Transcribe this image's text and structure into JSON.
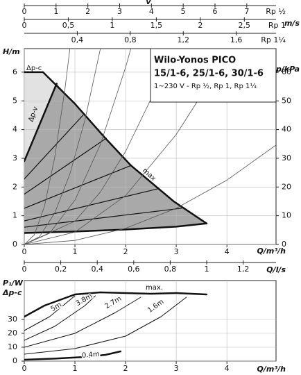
{
  "chart_data": [
    {
      "type": "line",
      "title": "Wilo-Yonos PICO",
      "subtitle": "15/1-6, 25/1-6, 30/1-6",
      "note": "1~230 V - Rp ½, Rp 1, Rp 1¼",
      "x_label": "Q/m³/h",
      "y_label": "H/m",
      "y2_label": "p/kPa",
      "xlim": [
        0,
        4.97
      ],
      "ylim": [
        0,
        6.82
      ],
      "y2lim": [
        0,
        68.2
      ],
      "xticks": [
        0,
        1,
        2,
        3,
        4
      ],
      "yticks": [
        0,
        1,
        2,
        3,
        4,
        5,
        6
      ],
      "y2ticks": [
        0,
        10,
        20,
        30,
        40,
        50,
        60
      ],
      "grid": true,
      "top_axes_title": "v",
      "top_axes_unit": "m/s",
      "top_axes": [
        {
          "label": "Rp ½",
          "lim": [
            0,
            7.92
          ],
          "ticks": [
            0,
            1,
            2,
            3,
            4,
            5,
            6,
            7
          ]
        },
        {
          "label": "Rp 1",
          "lim": [
            0,
            2.86
          ],
          "ticks": [
            0,
            {
              "value": 0.5,
              "label": "0,5"
            },
            1,
            {
              "value": 1.5,
              "label": "1,5"
            },
            2,
            {
              "value": 2.5,
              "label": "2,5"
            }
          ]
        },
        {
          "label": "Rp 1¼",
          "lim": [
            0,
            1.9
          ],
          "ticks": [
            {
              "value": 0.4,
              "label": "0,4"
            },
            {
              "value": 0.8,
              "label": "0,8"
            },
            {
              "value": 1.2,
              "label": "1,2"
            },
            {
              "value": 1.6,
              "label": "1,6"
            }
          ]
        }
      ],
      "bottom_axis": {
        "label": "Q/l/s",
        "lim": [
          0,
          1.38
        ],
        "ticks": [
          0,
          {
            "value": 0.2,
            "label": "0,2"
          },
          {
            "value": 0.4,
            "label": "0,4"
          },
          {
            "value": 0.6,
            "label": "0,6"
          },
          {
            "value": 0.8,
            "label": "0,8"
          },
          1,
          {
            "value": 1.2,
            "label": "1,2"
          }
        ]
      },
      "annotations": [
        "Δp-c",
        "Δp-v"
      ],
      "series": [
        {
          "name": "max",
          "color": "#111111",
          "width": 2.5,
          "x": [
            0,
            0.37,
            1,
            1.6,
            2.1,
            2.95,
            3.6
          ],
          "values": [
            6,
            6,
            4.9,
            3.7,
            2.76,
            1.5,
            0.73
          ]
        },
        {
          "color": "#111111",
          "width": 2.5,
          "x": [
            0,
            1,
            2,
            3,
            3.6
          ],
          "values": [
            0.4,
            0.45,
            0.52,
            0.62,
            0.73
          ]
        },
        {
          "color": "#111111",
          "width": 2.5,
          "x": [
            0,
            0.64
          ],
          "values": [
            2.9,
            5.6
          ]
        },
        {
          "color": "#111111",
          "width": 1.2,
          "x": [
            0,
            1.16
          ],
          "values": [
            2.28,
            4.5
          ]
        },
        {
          "color": "#111111",
          "width": 1.2,
          "x": [
            0,
            1.62
          ],
          "values": [
            1.75,
            3.7
          ]
        },
        {
          "color": "#111111",
          "width": 1.2,
          "x": [
            0,
            2.12
          ],
          "values": [
            1.26,
            2.76
          ]
        },
        {
          "color": "#111111",
          "width": 1.2,
          "x": [
            0,
            2.64
          ],
          "values": [
            0.82,
            1.94
          ]
        },
        {
          "color": "#111111",
          "width": 1.2,
          "x": [
            0,
            3.1
          ],
          "values": [
            0.6,
            1.26
          ]
        },
        {
          "color": "#555555",
          "width": 0.8,
          "x": [
            0,
            0.2,
            0.4,
            0.6,
            0.8,
            0.9
          ],
          "values": [
            0,
            0.34,
            1.34,
            3.02,
            5.37,
            6.8
          ]
        },
        {
          "color": "#555555",
          "width": 0.8,
          "x": [
            0,
            0.3,
            0.6,
            0.9,
            1.2,
            1.5
          ],
          "values": [
            0,
            0.27,
            1.09,
            2.45,
            4.35,
            6.8
          ]
        },
        {
          "color": "#555555",
          "width": 0.8,
          "x": [
            0,
            0.5,
            1,
            1.5,
            2,
            2.1
          ],
          "values": [
            0,
            0.39,
            1.54,
            3.47,
            6.17,
            6.8
          ]
        },
        {
          "color": "#555555",
          "width": 0.8,
          "x": [
            0,
            1,
            1.5,
            2,
            2.5,
            2.9
          ],
          "values": [
            0,
            0.81,
            1.82,
            3.24,
            5.06,
            6.8
          ]
        },
        {
          "color": "#555555",
          "width": 0.8,
          "x": [
            0,
            1,
            2,
            3,
            3.5,
            4
          ],
          "values": [
            0,
            0.43,
            1.7,
            3.83,
            5.21,
            6.8
          ]
        },
        {
          "color": "#555555",
          "width": 0.8,
          "x": [
            0,
            1,
            2,
            3,
            4,
            5
          ],
          "values": [
            0,
            0.14,
            0.56,
            1.26,
            2.24,
            3.5
          ]
        }
      ]
    },
    {
      "type": "line",
      "x_label": "Q/m³/h",
      "y_label": "P₁/W",
      "annotation": "Δp-c",
      "xlim": [
        0,
        4.97
      ],
      "ylim": [
        0,
        58
      ],
      "xticks": [
        0,
        1,
        2,
        3,
        4
      ],
      "yticks": [
        0,
        10,
        20,
        30
      ],
      "grid": true,
      "series": [
        {
          "name": "max.",
          "color": "#111111",
          "width": 2.5,
          "x": [
            0,
            0.4,
            1,
            1.5,
            2,
            2.5,
            3,
            3.6
          ],
          "values": [
            32,
            40,
            48,
            49.5,
            49,
            48.5,
            49,
            48
          ]
        },
        {
          "name": "5m",
          "color": "#111111",
          "width": 1,
          "x": [
            0,
            0.5,
            1
          ],
          "values": [
            22,
            32,
            47
          ]
        },
        {
          "name": "3.8m",
          "color": "#111111",
          "width": 1,
          "x": [
            0,
            0.6,
            1.2,
            1.4
          ],
          "values": [
            15,
            25,
            40,
            47
          ]
        },
        {
          "name": "2.7m",
          "color": "#111111",
          "width": 1,
          "x": [
            0,
            1,
            1.8,
            2.3
          ],
          "values": [
            10,
            20,
            35,
            46
          ]
        },
        {
          "name": "1.6m",
          "color": "#111111",
          "width": 1,
          "x": [
            0,
            1,
            2,
            2.7,
            3.2
          ],
          "values": [
            5,
            9,
            18,
            32,
            46
          ]
        },
        {
          "name": "0.4m",
          "color": "#111111",
          "width": 2.5,
          "x": [
            0,
            0.6,
            1.2,
            1.6,
            1.9
          ],
          "values": [
            1,
            1.8,
            3,
            4.5,
            7
          ]
        }
      ]
    }
  ]
}
